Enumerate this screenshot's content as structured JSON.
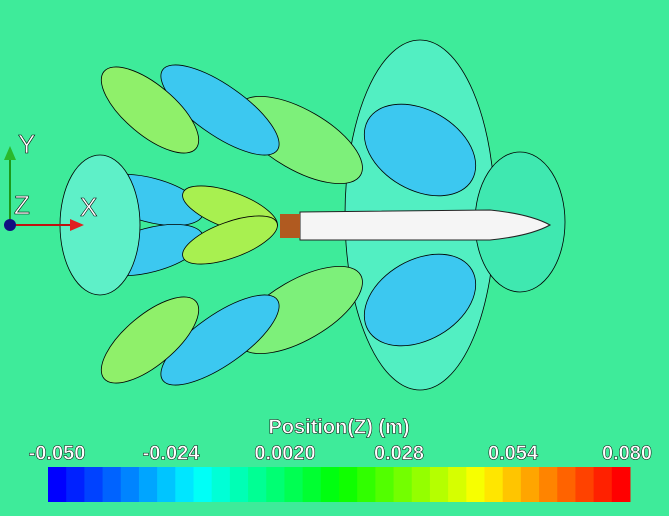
{
  "axes": {
    "y": "Y",
    "z": "Z",
    "x": "X"
  },
  "legend": {
    "title": "Position(Z) (m)",
    "range": [
      -0.05,
      0.08
    ],
    "ticks": [
      {
        "value": -0.05,
        "label": "-0.050"
      },
      -0.024,
      {
        "value": 0.002,
        "label": "0.0020"
      },
      0.028,
      0.054,
      {
        "value": 0.08,
        "label": "0.080"
      }
    ]
  }
}
